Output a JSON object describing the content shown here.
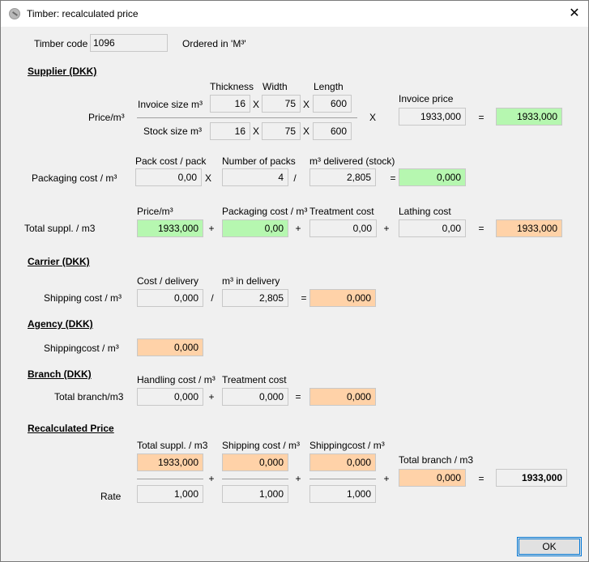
{
  "window": {
    "title": "Timber: recalculated price",
    "close_glyph": "✕",
    "icon": "timber-app-icon"
  },
  "timber": {
    "code_label": "Timber code",
    "code_value": "1096",
    "ordered_in": "Ordered in 'M³'"
  },
  "supplier": {
    "section_title": "Supplier (DKK)",
    "thickness_header": "Thickness",
    "width_header": "Width",
    "length_header": "Length",
    "price_label": "Price/m³",
    "invoice_size_label": "Invoice size m³",
    "stock_size_label": "Stock size m³",
    "invoice_thickness": "16",
    "invoice_width": "75",
    "invoice_length": "600",
    "stock_thickness": "16",
    "stock_width": "75",
    "stock_length": "600",
    "invoice_price_label": "Invoice price",
    "invoice_price": "1933,000",
    "price_result": "1933,000",
    "pack_cost_header": "Pack cost / pack",
    "num_packs_header": "Number of packs",
    "m3_delivered_header": "m³ delivered (stock)",
    "packaging_label": "Packaging cost / m³",
    "pack_cost": "0,00",
    "num_packs": "4",
    "m3_delivered": "2,805",
    "packaging_result": "0,000",
    "price_m3_header": "Price/m³",
    "packaging_cost_header": "Packaging cost / m³",
    "treatment_header": "Treatment cost",
    "lathing_header": "Lathing cost",
    "total_label": "Total suppl. / m3",
    "total_price": "1933,000",
    "total_packaging": "0,00",
    "total_treatment": "0,00",
    "total_lathing": "0,00",
    "total_result": "1933,000"
  },
  "carrier": {
    "section_title": "Carrier (DKK)",
    "cost_delivery_header": "Cost / delivery",
    "m3_delivery_header": "m³ in delivery",
    "shipping_label": "Shipping cost / m³",
    "cost_delivery": "0,000",
    "m3_delivery": "2,805",
    "shipping_result": "0,000"
  },
  "agency": {
    "section_title": "Agency (DKK)",
    "shipping_label": "Shippingcost / m³",
    "shipping_value": "0,000"
  },
  "branch": {
    "section_title": "Branch (DKK)",
    "handling_header": "Handling cost / m³",
    "treatment_header": "Treatment cost",
    "total_label": "Total branch/m3",
    "handling": "0,000",
    "treatment": "0,000",
    "result": "0,000"
  },
  "recalc": {
    "section_title": "Recalculated Price",
    "suppl_header": "Total suppl. / m3",
    "shipping_header": "Shipping cost / m³",
    "shippingcost_header": "Shippingcost / m³",
    "branch_header": "Total branch / m3",
    "suppl_value": "1933,000",
    "shipping_value": "0,000",
    "shippingcost_value": "0,000",
    "branch_value": "0,000",
    "rate_label": "Rate",
    "rate1": "1,000",
    "rate2": "1,000",
    "rate3": "1,000",
    "result": "1933,000"
  },
  "ops": {
    "times": "X",
    "divide": "/",
    "equals": "=",
    "plus": "+"
  },
  "buttons": {
    "ok": "OK"
  },
  "colors": {
    "green_field": "#b6f7b0",
    "orange_field": "#ffd2a8",
    "focus_border": "#0078d7"
  }
}
